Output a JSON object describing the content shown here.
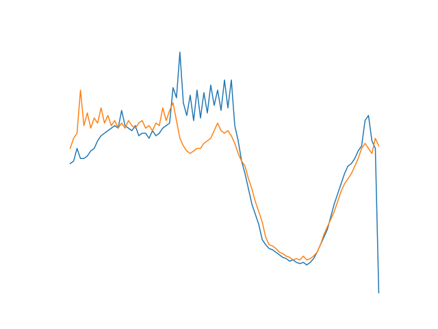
{
  "chart_data": {
    "type": "line",
    "ylim": [
      0,
      100
    ],
    "series": [
      {
        "color": "#1f77b4",
        "values": [
          51,
          52,
          57,
          53,
          53,
          54,
          56,
          57,
          60,
          62,
          63,
          64,
          65,
          66,
          65,
          72,
          66,
          65,
          64,
          66,
          62,
          63,
          63,
          61,
          64,
          62,
          63,
          65,
          66,
          67,
          81,
          77,
          95,
          75,
          70,
          78,
          68,
          80,
          69,
          79,
          71,
          82,
          74,
          80,
          72,
          84,
          73,
          84,
          66,
          60,
          52,
          47,
          41,
          35,
          31,
          27,
          21,
          19,
          17.5,
          17,
          16,
          15,
          14,
          13.5,
          12.5,
          13,
          12,
          11.5,
          12,
          11,
          12,
          13.5,
          16,
          19,
          22,
          25,
          30,
          35,
          39,
          43,
          47,
          50,
          51,
          53,
          56,
          58,
          68,
          70,
          60,
          57,
          0
        ]
      },
      {
        "color": "#ff7f0e",
        "values": [
          57,
          61,
          63,
          80,
          66,
          71,
          65,
          69,
          67,
          73,
          67,
          70,
          66,
          68,
          65,
          67,
          65,
          68,
          66,
          65,
          67,
          68,
          65,
          66,
          64,
          67,
          66,
          73,
          68,
          72,
          75,
          68,
          61,
          58,
          56,
          55,
          56,
          57,
          57,
          59,
          60,
          61,
          64,
          67,
          64,
          63,
          64,
          62,
          59,
          55,
          52,
          50,
          45,
          41,
          36,
          32,
          28,
          22,
          19,
          18.5,
          17.5,
          16,
          15.5,
          14.5,
          14,
          13,
          13.5,
          13,
          14.5,
          13,
          13.5,
          14.5,
          16,
          19,
          23,
          26,
          29,
          32,
          36,
          40,
          43,
          45,
          47,
          50,
          53,
          57,
          59,
          57,
          55,
          61,
          58
        ]
      }
    ]
  }
}
